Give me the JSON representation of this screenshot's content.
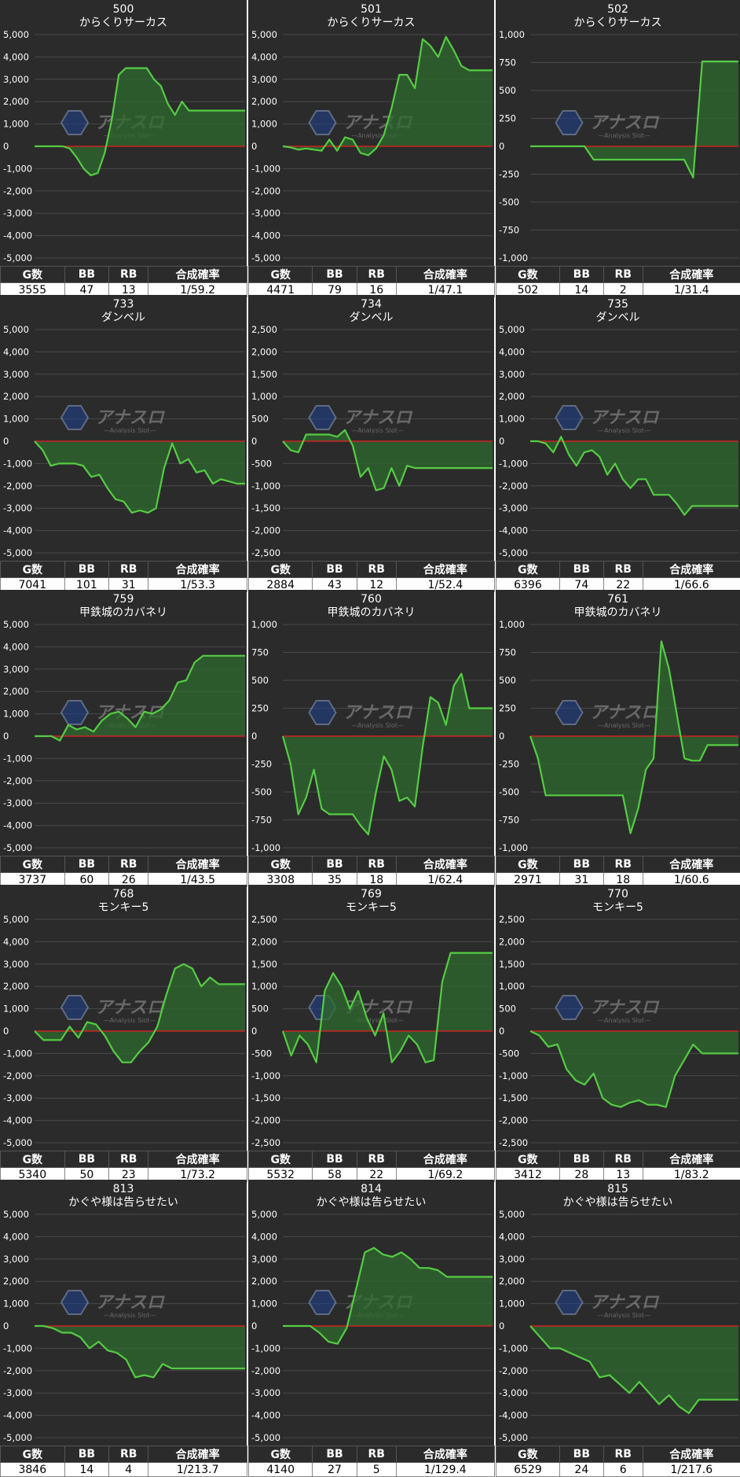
{
  "colors": {
    "panel_bg": "#2b2b2b",
    "line": "#55cc44",
    "fill": "#2f6b2f",
    "zero_line": "#cc2222",
    "grid": "#4a4a4a",
    "text": "#ffffff"
  },
  "table_headers": {
    "games": "G数",
    "bb": "BB",
    "rb": "RB",
    "rate": "合成確率"
  },
  "watermark": {
    "brand": "アナスロ",
    "sub": "—Analysis Slot—"
  },
  "chart_data": [
    {
      "type": "area",
      "title": "500",
      "subtitle": "からくりサーカス",
      "ylim": [
        -5000,
        5000
      ],
      "yticks": [
        5000,
        4000,
        3000,
        2000,
        1000,
        0,
        -1000,
        -2000,
        -3000,
        -4000,
        -5000
      ],
      "ytick_labels": [
        "5,000",
        "4,000",
        "3,000",
        "2,000",
        "1,000",
        "0",
        "-1,000",
        "-2,000",
        "-3,000",
        "-4,000",
        "-5,000"
      ],
      "values": [
        0,
        0,
        0,
        0,
        0,
        -100,
        -500,
        -1000,
        -1300,
        -1200,
        -300,
        1200,
        3200,
        3500,
        3500,
        3500,
        3500,
        3000,
        2700,
        1900,
        1400,
        2000,
        1600,
        1600,
        1600,
        1600,
        1600,
        1600,
        1600,
        1600,
        1600
      ],
      "stats": {
        "games": "3555",
        "bb": "47",
        "rb": "13",
        "rate": "1/59.2"
      }
    },
    {
      "type": "area",
      "title": "501",
      "subtitle": "からくりサーカス",
      "ylim": [
        -5000,
        5000
      ],
      "yticks": [
        5000,
        4000,
        3000,
        2000,
        1000,
        0,
        -1000,
        -2000,
        -3000,
        -4000,
        -5000
      ],
      "ytick_labels": [
        "5,000",
        "4,000",
        "3,000",
        "2,000",
        "1,000",
        "0",
        "-1,000",
        "-2,000",
        "-3,000",
        "-4,000",
        "-5,000"
      ],
      "values": [
        0,
        -50,
        -150,
        -100,
        -150,
        -200,
        300,
        -200,
        400,
        300,
        -300,
        -400,
        -100,
        500,
        1700,
        3200,
        3200,
        2600,
        4800,
        4500,
        4000,
        4900,
        4300,
        3600,
        3400,
        3400,
        3400,
        3400
      ],
      "stats": {
        "games": "4471",
        "bb": "79",
        "rb": "16",
        "rate": "1/47.1"
      }
    },
    {
      "type": "area",
      "title": "502",
      "subtitle": "からくりサーカス",
      "ylim": [
        -1000,
        1000
      ],
      "yticks": [
        1000,
        750,
        500,
        250,
        0,
        -250,
        -500,
        -750,
        -1000
      ],
      "ytick_labels": [
        "1,000",
        "750",
        "500",
        "250",
        "0",
        "-250",
        "-500",
        "-750",
        "-1,000"
      ],
      "values": [
        0,
        0,
        0,
        0,
        0,
        0,
        0,
        -120,
        -120,
        -120,
        -120,
        -120,
        -120,
        -120,
        -120,
        -120,
        -120,
        -120,
        -280,
        760,
        760,
        760,
        760,
        760
      ],
      "stats": {
        "games": "502",
        "bb": "14",
        "rb": "2",
        "rate": "1/31.4"
      }
    },
    {
      "type": "area",
      "title": "733",
      "subtitle": "ダンベル",
      "ylim": [
        -5000,
        5000
      ],
      "yticks": [
        5000,
        4000,
        3000,
        2000,
        1000,
        0,
        -1000,
        -2000,
        -3000,
        -4000,
        -5000
      ],
      "ytick_labels": [
        "5,000",
        "4,000",
        "3,000",
        "2,000",
        "1,000",
        "0",
        "-1,000",
        "-2,000",
        "-3,000",
        "-4,000",
        "-5,000"
      ],
      "values": [
        0,
        -400,
        -1100,
        -1000,
        -1000,
        -1000,
        -1100,
        -1600,
        -1500,
        -2100,
        -2600,
        -2700,
        -3200,
        -3100,
        -3200,
        -3000,
        -1200,
        -100,
        -1000,
        -800,
        -1400,
        -1300,
        -1900,
        -1700,
        -1800,
        -1900,
        -1900
      ],
      "stats": {
        "games": "7041",
        "bb": "101",
        "rb": "31",
        "rate": "1/53.3"
      }
    },
    {
      "type": "area",
      "title": "734",
      "subtitle": "ダンベル",
      "ylim": [
        -2500,
        2500
      ],
      "yticks": [
        2500,
        2000,
        1500,
        1000,
        500,
        0,
        -500,
        -1000,
        -1500,
        -2000,
        -2500
      ],
      "ytick_labels": [
        "2,500",
        "2,000",
        "1,500",
        "1,000",
        "500",
        "0",
        "-500",
        "-1,000",
        "-1,500",
        "-2,000",
        "-2,500"
      ],
      "values": [
        0,
        -200,
        -250,
        150,
        150,
        150,
        150,
        100,
        250,
        -100,
        -800,
        -600,
        -1100,
        -1050,
        -600,
        -1000,
        -550,
        -600,
        -600,
        -600,
        -600,
        -600,
        -600,
        -600,
        -600,
        -600,
        -600,
        -600
      ],
      "stats": {
        "games": "2884",
        "bb": "43",
        "rb": "12",
        "rate": "1/52.4"
      }
    },
    {
      "type": "area",
      "title": "735",
      "subtitle": "ダンベル",
      "ylim": [
        -5000,
        5000
      ],
      "yticks": [
        5000,
        4000,
        3000,
        2000,
        1000,
        0,
        -1000,
        -2000,
        -3000,
        -4000,
        -5000
      ],
      "ytick_labels": [
        "5,000",
        "4,000",
        "3,000",
        "2,000",
        "1,000",
        "0",
        "-1,000",
        "-2,000",
        "-3,000",
        "-4,000",
        "-5,000"
      ],
      "values": [
        0,
        0,
        -100,
        -500,
        200,
        -600,
        -1100,
        -500,
        -400,
        -700,
        -1500,
        -1000,
        -1700,
        -2100,
        -1700,
        -1700,
        -2400,
        -2400,
        -2400,
        -2800,
        -3300,
        -2900,
        -2900,
        -2900,
        -2900,
        -2900,
        -2900,
        -2900
      ],
      "stats": {
        "games": "6396",
        "bb": "74",
        "rb": "22",
        "rate": "1/66.6"
      }
    },
    {
      "type": "area",
      "title": "759",
      "subtitle": "甲鉄城のカバネリ",
      "ylim": [
        -5000,
        5000
      ],
      "yticks": [
        5000,
        4000,
        3000,
        2000,
        1000,
        0,
        -1000,
        -2000,
        -3000,
        -4000,
        -5000
      ],
      "ytick_labels": [
        "5,000",
        "4,000",
        "3,000",
        "2,000",
        "1,000",
        "0",
        "-1,000",
        "-2,000",
        "-3,000",
        "-4,000",
        "-5,000"
      ],
      "values": [
        0,
        0,
        0,
        -200,
        500,
        300,
        400,
        200,
        700,
        1000,
        1100,
        800,
        400,
        1100,
        1000,
        1200,
        1600,
        2400,
        2500,
        3300,
        3600,
        3600,
        3600,
        3600,
        3600,
        3600
      ],
      "stats": {
        "games": "3737",
        "bb": "60",
        "rb": "26",
        "rate": "1/43.5"
      }
    },
    {
      "type": "area",
      "title": "760",
      "subtitle": "甲鉄城のカバネリ",
      "ylim": [
        -1000,
        1000
      ],
      "yticks": [
        1000,
        750,
        500,
        250,
        0,
        -250,
        -500,
        -750,
        -1000
      ],
      "ytick_labels": [
        "1,000",
        "750",
        "500",
        "250",
        "0",
        "-250",
        "-500",
        "-750",
        "-1,000"
      ],
      "values": [
        0,
        -250,
        -700,
        -550,
        -300,
        -650,
        -700,
        -700,
        -700,
        -700,
        -800,
        -880,
        -500,
        -180,
        -300,
        -580,
        -550,
        -630,
        -100,
        350,
        300,
        100,
        450,
        560,
        250,
        250,
        250,
        250
      ],
      "stats": {
        "games": "3308",
        "bb": "35",
        "rb": "18",
        "rate": "1/62.4"
      }
    },
    {
      "type": "area",
      "title": "761",
      "subtitle": "甲鉄城のカバネリ",
      "ylim": [
        -1000,
        1000
      ],
      "yticks": [
        1000,
        750,
        500,
        250,
        0,
        -250,
        -500,
        -750,
        -1000
      ],
      "ytick_labels": [
        "1,000",
        "750",
        "500",
        "250",
        "0",
        "-250",
        "-500",
        "-750",
        "-1,000"
      ],
      "values": [
        0,
        -200,
        -530,
        -530,
        -530,
        -530,
        -530,
        -530,
        -530,
        -530,
        -530,
        -530,
        -530,
        -870,
        -650,
        -300,
        -200,
        850,
        600,
        200,
        -200,
        -220,
        -220,
        -80,
        -80,
        -80,
        -80,
        -80
      ],
      "stats": {
        "games": "2971",
        "bb": "31",
        "rb": "18",
        "rate": "1/60.6"
      }
    },
    {
      "type": "area",
      "title": "768",
      "subtitle": "モンキー5",
      "ylim": [
        -5000,
        5000
      ],
      "yticks": [
        5000,
        4000,
        3000,
        2000,
        1000,
        0,
        -1000,
        -2000,
        -3000,
        -4000,
        -5000
      ],
      "ytick_labels": [
        "5,000",
        "4,000",
        "3,000",
        "2,000",
        "1,000",
        "0",
        "-1,000",
        "-2,000",
        "-3,000",
        "-4,000",
        "-5,000"
      ],
      "values": [
        0,
        -400,
        -400,
        -400,
        200,
        -300,
        400,
        300,
        -200,
        -900,
        -1400,
        -1400,
        -900,
        -500,
        200,
        1600,
        2800,
        3000,
        2800,
        2000,
        2400,
        2100,
        2100,
        2100,
        2100
      ],
      "stats": {
        "games": "5340",
        "bb": "50",
        "rb": "23",
        "rate": "1/73.2"
      }
    },
    {
      "type": "area",
      "title": "769",
      "subtitle": "モンキー5",
      "ylim": [
        -2500,
        2500
      ],
      "yticks": [
        2500,
        2000,
        1500,
        1000,
        500,
        0,
        -500,
        -1000,
        -1500,
        -2000,
        -2500
      ],
      "ytick_labels": [
        "2,500",
        "2,000",
        "1,500",
        "1,000",
        "500",
        "0",
        "-500",
        "-1,000",
        "-1,500",
        "-2,000",
        "-2,500"
      ],
      "values": [
        0,
        -550,
        -100,
        -300,
        -700,
        900,
        1300,
        1000,
        500,
        900,
        300,
        -100,
        400,
        -700,
        -450,
        -100,
        -300,
        -700,
        -650,
        1100,
        1750,
        1750,
        1750,
        1750,
        1750,
        1750
      ],
      "stats": {
        "games": "5532",
        "bb": "58",
        "rb": "22",
        "rate": "1/69.2"
      }
    },
    {
      "type": "area",
      "title": "770",
      "subtitle": "モンキー5",
      "ylim": [
        -2500,
        2500
      ],
      "yticks": [
        2500,
        2000,
        1500,
        1000,
        500,
        0,
        -500,
        -1000,
        -1500,
        -2000,
        -2500
      ],
      "ytick_labels": [
        "2,500",
        "2,000",
        "1,500",
        "1,000",
        "500",
        "0",
        "-500",
        "-1,000",
        "-1,500",
        "-2,000",
        "-2,500"
      ],
      "values": [
        0,
        -100,
        -350,
        -300,
        -850,
        -1100,
        -1200,
        -950,
        -1500,
        -1650,
        -1700,
        -1600,
        -1550,
        -1650,
        -1650,
        -1700,
        -1000,
        -650,
        -300,
        -500,
        -500,
        -500,
        -500,
        -500
      ],
      "stats": {
        "games": "3412",
        "bb": "28",
        "rb": "13",
        "rate": "1/83.2"
      }
    },
    {
      "type": "area",
      "title": "813",
      "subtitle": "かぐや様は告らせたい",
      "ylim": [
        -5000,
        5000
      ],
      "yticks": [
        5000,
        4000,
        3000,
        2000,
        1000,
        0,
        -1000,
        -2000,
        -3000,
        -4000,
        -5000
      ],
      "ytick_labels": [
        "5,000",
        "4,000",
        "3,000",
        "2,000",
        "1,000",
        "0",
        "-1,000",
        "-2,000",
        "-3,000",
        "-4,000",
        "-5,000"
      ],
      "values": [
        0,
        0,
        -100,
        -300,
        -300,
        -500,
        -1000,
        -700,
        -1100,
        -1200,
        -1500,
        -2300,
        -2200,
        -2300,
        -1700,
        -1900,
        -1900,
        -1900,
        -1900,
        -1900,
        -1900,
        -1900,
        -1900,
        -1900
      ],
      "stats": {
        "games": "3846",
        "bb": "14",
        "rb": "4",
        "rate": "1/213.7"
      }
    },
    {
      "type": "area",
      "title": "814",
      "subtitle": "かぐや様は告らせたい",
      "ylim": [
        -5000,
        5000
      ],
      "yticks": [
        5000,
        4000,
        3000,
        2000,
        1000,
        0,
        -1000,
        -2000,
        -3000,
        -4000,
        -5000
      ],
      "ytick_labels": [
        "5,000",
        "4,000",
        "3,000",
        "2,000",
        "1,000",
        "0",
        "-1,000",
        "-2,000",
        "-3,000",
        "-4,000",
        "-5,000"
      ],
      "values": [
        0,
        0,
        0,
        0,
        -300,
        -700,
        -800,
        -100,
        1600,
        3300,
        3500,
        3200,
        3100,
        3300,
        3000,
        2600,
        2600,
        2500,
        2200,
        2200,
        2200,
        2200,
        2200,
        2200
      ],
      "stats": {
        "games": "4140",
        "bb": "27",
        "rb": "5",
        "rate": "1/129.4"
      }
    },
    {
      "type": "area",
      "title": "815",
      "subtitle": "かぐや様は告らせたい",
      "ylim": [
        -5000,
        5000
      ],
      "yticks": [
        5000,
        4000,
        3000,
        2000,
        1000,
        0,
        -1000,
        -2000,
        -3000,
        -4000,
        -5000
      ],
      "ytick_labels": [
        "5,000",
        "4,000",
        "3,000",
        "2,000",
        "1,000",
        "0",
        "-1,000",
        "-2,000",
        "-3,000",
        "-4,000",
        "-5,000"
      ],
      "values": [
        0,
        -500,
        -1000,
        -1000,
        -1200,
        -1400,
        -1600,
        -2300,
        -2200,
        -2600,
        -3000,
        -2500,
        -3000,
        -3500,
        -3100,
        -3600,
        -3900,
        -3300,
        -3300,
        -3300,
        -3300,
        -3300
      ],
      "stats": {
        "games": "6529",
        "bb": "24",
        "rb": "6",
        "rate": "1/217.6"
      }
    }
  ]
}
